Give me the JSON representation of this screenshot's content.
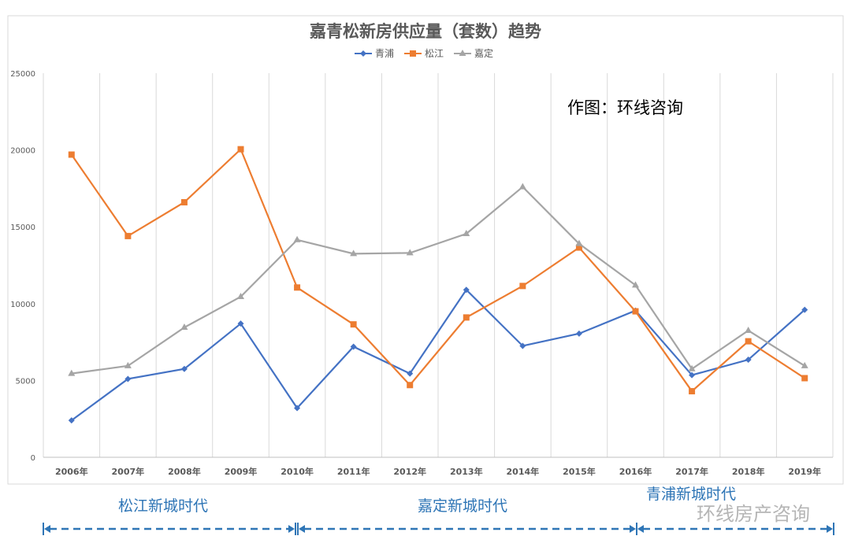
{
  "chart_data": {
    "type": "line",
    "title": "嘉青松新房供应量（套数）趋势",
    "categories": [
      "2006年",
      "2007年",
      "2008年",
      "2009年",
      "2010年",
      "2011年",
      "2012年",
      "2013年",
      "2014年",
      "2015年",
      "2016年",
      "2017年",
      "2018年",
      "2019年"
    ],
    "series": [
      {
        "name": "青浦",
        "color": "#4472c4",
        "marker": "diamond",
        "values": [
          2400,
          5100,
          5750,
          8700,
          3200,
          7200,
          5450,
          10900,
          7250,
          8050,
          9550,
          5350,
          6350,
          9600
        ]
      },
      {
        "name": "松江",
        "color": "#ed7d31",
        "marker": "square",
        "values": [
          19700,
          14400,
          16600,
          20050,
          11050,
          8650,
          4700,
          9100,
          11150,
          13650,
          9500,
          4300,
          7550,
          5150
        ]
      },
      {
        "name": "嘉定",
        "color": "#a5a5a5",
        "marker": "triangle",
        "values": [
          5450,
          5950,
          8450,
          10450,
          14150,
          13250,
          13300,
          14550,
          17600,
          13900,
          11200,
          5750,
          8250,
          5950
        ]
      }
    ],
    "ylim": [
      0,
      25000
    ],
    "yticks": [
      "0",
      "5000",
      "10000",
      "15000",
      "20000",
      "25000"
    ],
    "grid": "vertical",
    "legend": "top-center",
    "annotation": "作图：环线咨询"
  },
  "eras": [
    {
      "label": "松江新城时代"
    },
    {
      "label": "嘉定新城时代"
    },
    {
      "label": "青浦新城时代"
    }
  ],
  "era_color": "#2e75b6",
  "watermark": "环线房产咨询"
}
